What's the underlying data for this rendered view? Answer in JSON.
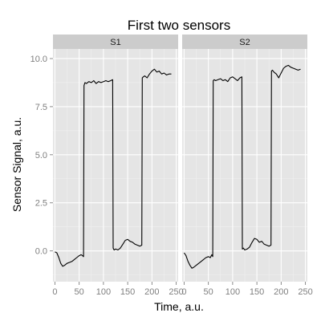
{
  "chart_data": {
    "type": "line",
    "title": "First two sensors",
    "xlabel": "Time, a.u.",
    "ylabel": "Sensor Signal, a.u.",
    "xlim": [
      -4,
      254
    ],
    "ylim": [
      -1.6,
      10.5
    ],
    "x_ticks": [
      0,
      50,
      100,
      150,
      200,
      250
    ],
    "x_tick_labels": [
      "0",
      "50",
      "100",
      "150",
      "200",
      "250"
    ],
    "y_ticks": [
      0,
      2.5,
      5,
      7.5,
      10
    ],
    "y_tick_labels": [
      "0.0",
      "2.5",
      "5.0",
      "7.5",
      "10.0"
    ],
    "grid": true,
    "facets": [
      {
        "name": "S1",
        "x": [
          0,
          4,
          8,
          12,
          16,
          20,
          25,
          30,
          35,
          40,
          45,
          50,
          54,
          57,
          59,
          60,
          62,
          65,
          70,
          75,
          80,
          85,
          90,
          95,
          100,
          105,
          110,
          115,
          119,
          120,
          122,
          125,
          130,
          135,
          140,
          145,
          150,
          155,
          160,
          165,
          170,
          175,
          179,
          180,
          182,
          185,
          190,
          195,
          200,
          205,
          210,
          215,
          220,
          225,
          230,
          235,
          240
        ],
        "y": [
          -0.05,
          -0.1,
          -0.35,
          -0.65,
          -0.8,
          -0.75,
          -0.65,
          -0.6,
          -0.55,
          -0.45,
          -0.35,
          -0.25,
          -0.2,
          -0.25,
          -0.3,
          8.6,
          8.75,
          8.7,
          8.8,
          8.75,
          8.85,
          8.7,
          8.8,
          8.75,
          8.8,
          8.85,
          8.8,
          8.85,
          8.9,
          0.15,
          0.05,
          0.1,
          0.05,
          0.15,
          0.35,
          0.55,
          0.6,
          0.5,
          0.45,
          0.35,
          0.3,
          0.25,
          0.3,
          9.0,
          9.05,
          9.1,
          9.0,
          9.2,
          9.35,
          9.45,
          9.3,
          9.35,
          9.2,
          9.25,
          9.15,
          9.2,
          9.2
        ]
      },
      {
        "name": "S2",
        "x": [
          0,
          4,
          8,
          12,
          16,
          20,
          25,
          30,
          35,
          40,
          45,
          50,
          54,
          57,
          59,
          60,
          62,
          65,
          70,
          75,
          80,
          85,
          90,
          95,
          100,
          105,
          110,
          115,
          119,
          120,
          122,
          125,
          130,
          135,
          140,
          145,
          150,
          155,
          160,
          165,
          170,
          175,
          179,
          180,
          182,
          185,
          190,
          195,
          200,
          205,
          210,
          215,
          220,
          225,
          230,
          235,
          240
        ],
        "y": [
          -0.1,
          -0.25,
          -0.55,
          -0.75,
          -0.9,
          -0.85,
          -0.75,
          -0.65,
          -0.55,
          -0.45,
          -0.35,
          -0.3,
          -0.35,
          -0.2,
          -0.3,
          8.85,
          8.9,
          8.85,
          8.9,
          8.95,
          8.85,
          8.9,
          8.8,
          9.0,
          9.05,
          8.95,
          8.85,
          9.0,
          9.05,
          0.1,
          0.15,
          0.05,
          0.1,
          0.2,
          0.45,
          0.65,
          0.6,
          0.45,
          0.5,
          0.35,
          0.3,
          0.25,
          0.3,
          9.35,
          9.4,
          9.3,
          9.2,
          9.0,
          9.25,
          9.5,
          9.6,
          9.65,
          9.55,
          9.5,
          9.45,
          9.4,
          9.45
        ]
      }
    ]
  }
}
